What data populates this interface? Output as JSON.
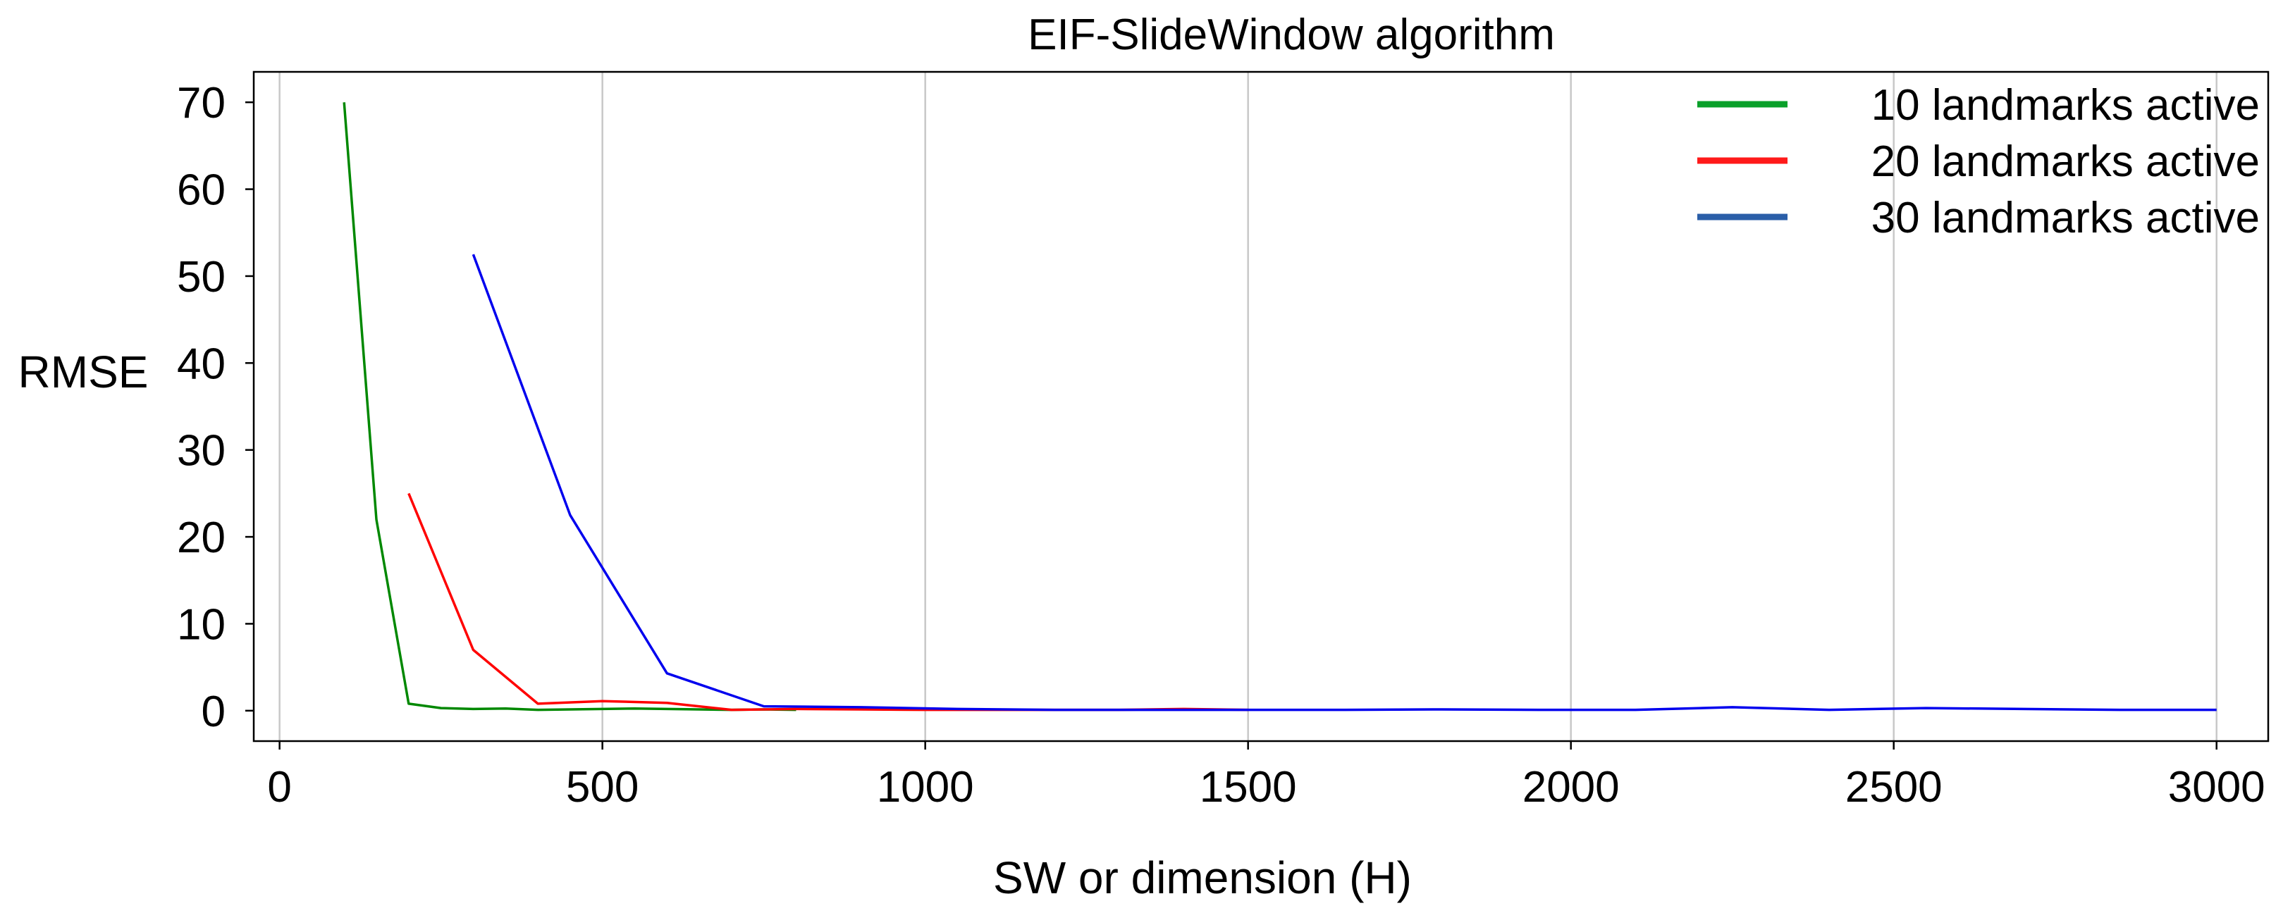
{
  "chart_data": {
    "type": "line",
    "title": "EIF-SlideWindow algorithm",
    "xlabel": "SW or dimension (H)",
    "ylabel": "RMSE",
    "xlim": [
      -40,
      3080
    ],
    "ylim": [
      -3.5,
      73.5
    ],
    "xticks": [
      0,
      500,
      1000,
      1500,
      2000,
      2500,
      3000
    ],
    "yticks": [
      0,
      10,
      20,
      30,
      40,
      50,
      60,
      70
    ],
    "grid": "x-only",
    "legend_position": "top-right",
    "series": [
      {
        "name": "10 landmarks active",
        "color": "#008800",
        "legend_color": "#0aa02a",
        "x": [
          100,
          150,
          200,
          250,
          300,
          350,
          400,
          450,
          500,
          550,
          600,
          650,
          700,
          750,
          800
        ],
        "y": [
          70,
          22,
          0.8,
          0.3,
          0.2,
          0.25,
          0.1,
          0.15,
          0.2,
          0.25,
          0.2,
          0.15,
          0.1,
          0.15,
          0.1
        ]
      },
      {
        "name": "20 landmarks active",
        "color": "#ff0000",
        "legend_color": "#ff1a1a",
        "x": [
          200,
          300,
          400,
          500,
          600,
          700,
          800,
          900,
          1000,
          1100,
          1200,
          1300,
          1400,
          1500
        ],
        "y": [
          25,
          7,
          0.8,
          1.1,
          0.9,
          0.1,
          0.2,
          0.15,
          0.1,
          0.1,
          0.1,
          0.1,
          0.2,
          0.1
        ]
      },
      {
        "name": "30 landmarks active",
        "color": "#0000ee",
        "legend_color": "#2a5ea8",
        "x": [
          300,
          450,
          600,
          750,
          900,
          1050,
          1200,
          1350,
          1500,
          1650,
          1800,
          1950,
          2100,
          2250,
          2400,
          2550,
          2700,
          2850,
          3000
        ],
        "y": [
          52.5,
          22.5,
          4.3,
          0.5,
          0.4,
          0.2,
          0.1,
          0.1,
          0.1,
          0.1,
          0.15,
          0.1,
          0.1,
          0.4,
          0.1,
          0.3,
          0.2,
          0.1,
          0.1
        ]
      }
    ]
  }
}
